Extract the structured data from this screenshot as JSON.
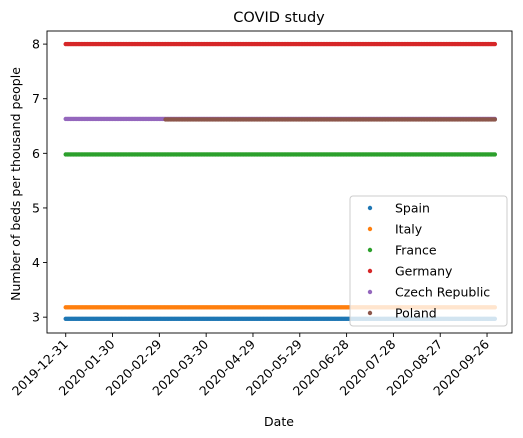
{
  "chart_data": {
    "type": "scatter",
    "title": "COVID study",
    "xlabel": "Date",
    "ylabel": "Number of beds per thousand people",
    "x_start": "2019-12-31",
    "x_end": "2020-10-01",
    "xlim": [
      "2019-12-19",
      "2020-10-12"
    ],
    "ylim": [
      2.71,
      8.24
    ],
    "x_ticks": [
      "2019-12-31",
      "2020-01-30",
      "2020-02-29",
      "2020-03-30",
      "2020-04-29",
      "2020-05-29",
      "2020-06-28",
      "2020-07-28",
      "2020-08-27",
      "2020-09-26"
    ],
    "y_ticks": [
      3,
      4,
      5,
      6,
      7,
      8
    ],
    "grid": false,
    "legend_position": "lower-right",
    "series": [
      {
        "name": "Spain",
        "color": "#1f77b4",
        "segments": [
          {
            "x_start": "2019-12-31",
            "x_end": "2020-10-01",
            "y": 2.97
          }
        ]
      },
      {
        "name": "Italy",
        "color": "#ff7f0e",
        "segments": [
          {
            "x_start": "2019-12-31",
            "x_end": "2020-10-01",
            "y": 3.18
          }
        ]
      },
      {
        "name": "France",
        "color": "#2ca02c",
        "segments": [
          {
            "x_start": "2019-12-31",
            "x_end": "2020-10-01",
            "y": 5.98
          }
        ]
      },
      {
        "name": "Germany",
        "color": "#d62728",
        "segments": [
          {
            "x_start": "2019-12-31",
            "x_end": "2020-10-01",
            "y": 8.0
          }
        ]
      },
      {
        "name": "Czech Republic",
        "color": "#9467bd",
        "segments": [
          {
            "x_start": "2019-12-31",
            "x_end": "2020-10-01",
            "y": 6.63
          }
        ]
      },
      {
        "name": "Poland",
        "color": "#8c564b",
        "segments": [
          {
            "x_start": "2020-03-04",
            "x_end": "2020-10-01",
            "y": 6.62
          }
        ]
      }
    ]
  }
}
